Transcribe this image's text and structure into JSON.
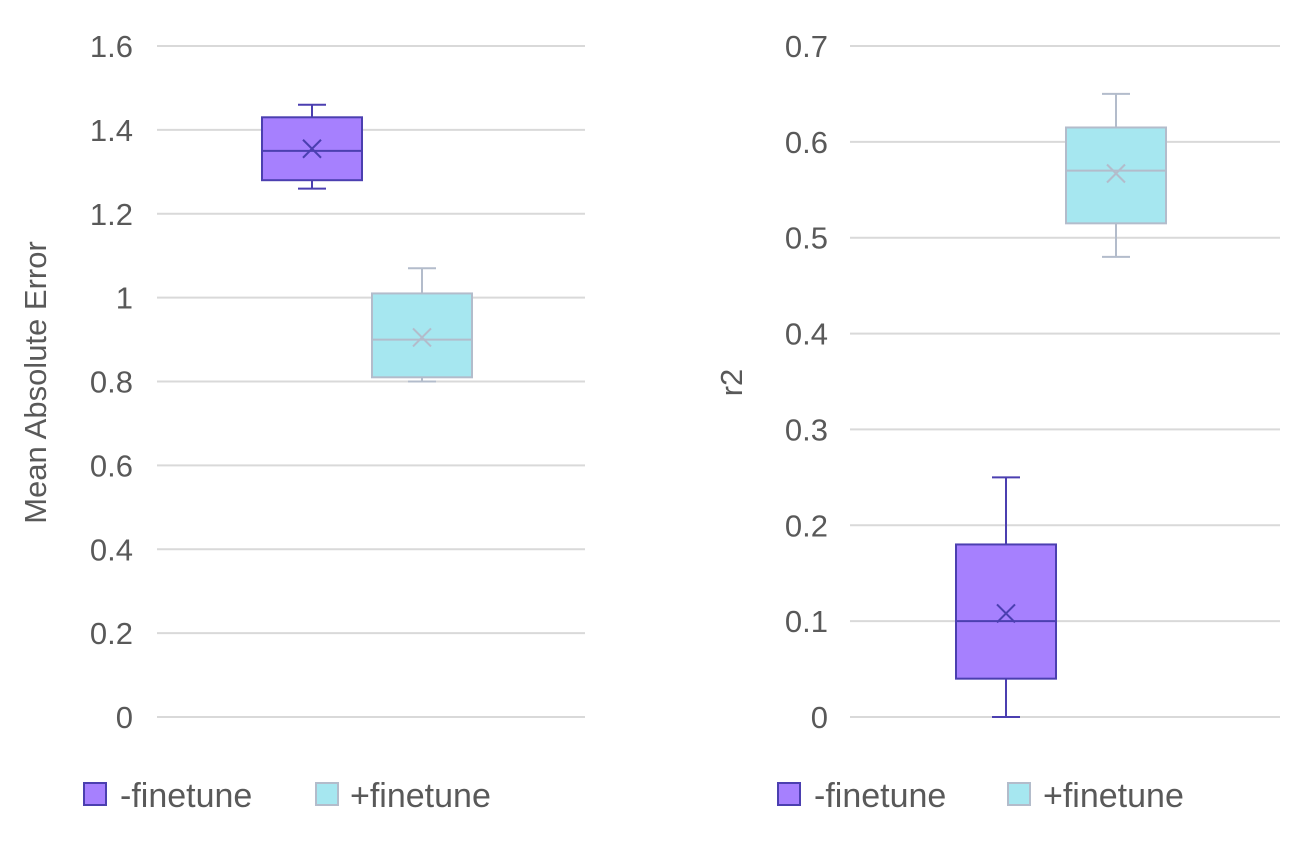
{
  "chart_data": [
    {
      "type": "box",
      "ylabel": "Mean Absolute Error",
      "ylim": [
        0,
        1.6
      ],
      "yticks": [
        0,
        0.2,
        0.4,
        0.6,
        0.8,
        1,
        1.2,
        1.4,
        1.6
      ],
      "ytick_labels": [
        "0",
        "0.2",
        "0.4",
        "0.6",
        "0.8",
        "1",
        "1.2",
        "1.4",
        "1.6"
      ],
      "grid": true,
      "legend_position": "bottom",
      "series": [
        {
          "name": "-finetune",
          "color": "#a680fe",
          "edge": "#4b3fb0",
          "min": 1.26,
          "q1": 1.28,
          "median": 1.35,
          "q3": 1.43,
          "max": 1.46,
          "mean": 1.355
        },
        {
          "name": "+finetune",
          "color": "#a6e7f0",
          "edge": "#b3bccb",
          "min": 0.8,
          "q1": 0.81,
          "median": 0.9,
          "q3": 1.01,
          "max": 1.07,
          "mean": 0.905
        }
      ]
    },
    {
      "type": "box",
      "ylabel": "r2",
      "ylim": [
        0,
        0.7
      ],
      "yticks": [
        0,
        0.1,
        0.2,
        0.3,
        0.4,
        0.5,
        0.6,
        0.7
      ],
      "ytick_labels": [
        "0",
        "0.1",
        "0.2",
        "0.3",
        "0.4",
        "0.5",
        "0.6",
        "0.7"
      ],
      "grid": true,
      "legend_position": "bottom",
      "series": [
        {
          "name": "-finetune",
          "color": "#a680fe",
          "edge": "#4b3fb0",
          "min": 0.0,
          "q1": 0.04,
          "median": 0.1,
          "q3": 0.18,
          "max": 0.25,
          "mean": 0.108
        },
        {
          "name": "+finetune",
          "color": "#a6e7f0",
          "edge": "#b3bccb",
          "min": 0.48,
          "q1": 0.515,
          "median": 0.57,
          "q3": 0.615,
          "max": 0.65,
          "mean": 0.567
        }
      ]
    }
  ]
}
